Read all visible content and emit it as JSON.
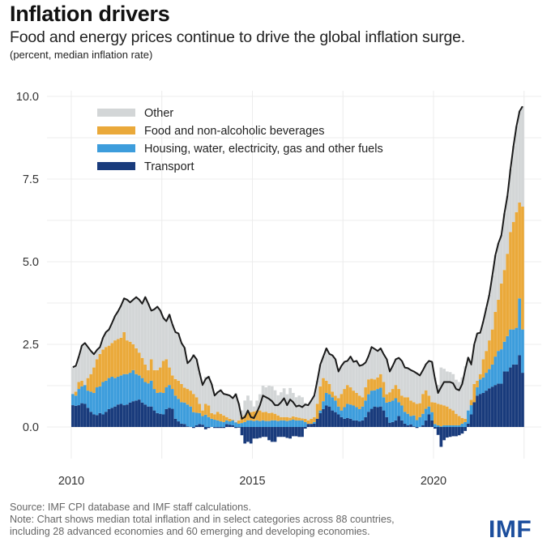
{
  "header": {
    "title": "Inflation drivers",
    "subtitle": "Food and energy prices continue to drive the global inflation surge.",
    "units": "(percent, median inflation rate)"
  },
  "footer": {
    "source": "Source: IMF CPI database and IMF staff calculations.",
    "note_line1": "Note: Chart shows median total inflation and in select categories across 88 countries,",
    "note_line2": "including 28 advanced economies and 60 emerging and developing economies."
  },
  "logo": {
    "text": "IMF",
    "color": "#1c4e9d"
  },
  "chart_data": {
    "type": "bar",
    "subtype": "stacked monthly bars with total line",
    "title": "Inflation drivers",
    "subtitle": "Food and energy prices continue to drive the global inflation surge.",
    "ylabel": "(percent, median inflation rate)",
    "xlabel": "",
    "x_start": "2010-01",
    "x_end": "2022-06",
    "frequency": "monthly",
    "xlim": [
      2010,
      2022.5
    ],
    "ylim": [
      -1.0,
      10.0
    ],
    "yticks": [
      0.0,
      2.5,
      5.0,
      7.5,
      10.0
    ],
    "ytick_labels": [
      "0.0",
      "2.5",
      "5.0",
      "7.5",
      "10.0"
    ],
    "xticks": [
      2010,
      2015,
      2020
    ],
    "xtick_labels": [
      "2010",
      "2015",
      "2020"
    ],
    "grid": true,
    "legend_position": "top-left",
    "legend": [
      {
        "key": "other",
        "label": "Other",
        "color": "#d3d6d7"
      },
      {
        "key": "food",
        "label": "Food and non-alcoholic beverages",
        "color": "#eaa93a"
      },
      {
        "key": "housing",
        "label": "Housing, water, electricity, gas and other fuels",
        "color": "#3d9ddc"
      },
      {
        "key": "transport",
        "label": "Transport",
        "color": "#193b7c"
      }
    ],
    "line": {
      "name": "Total (median headline inflation)",
      "color": "#1a1a1a"
    },
    "note": "Stack order bottom to top: transport, housing, food, other. transport is the transport contribution; housing_top and food_top are cumulative stack levels; other fills up to total (minus any negative transport).",
    "total": [
      1.81,
      1.85,
      2.13,
      2.46,
      2.54,
      2.42,
      2.3,
      2.2,
      2.33,
      2.42,
      2.7,
      2.87,
      2.95,
      3.15,
      3.36,
      3.5,
      3.68,
      3.89,
      3.85,
      3.77,
      3.85,
      3.93,
      3.85,
      3.73,
      3.93,
      3.73,
      3.52,
      3.56,
      3.64,
      3.52,
      3.3,
      3.2,
      3.4,
      3.1,
      2.87,
      2.83,
      2.54,
      2.4,
      1.93,
      2.02,
      2.17,
      2.05,
      1.64,
      1.27,
      1.45,
      1.52,
      1.3,
      0.95,
      1.05,
      1.11,
      1.0,
      0.98,
      0.95,
      0.87,
      0.99,
      0.7,
      0.25,
      0.3,
      0.5,
      0.3,
      0.27,
      0.45,
      0.66,
      0.95,
      0.9,
      0.85,
      0.78,
      0.66,
      0.66,
      0.75,
      0.87,
      0.66,
      0.83,
      0.75,
      0.62,
      0.65,
      0.6,
      0.68,
      0.66,
      0.8,
      0.95,
      1.4,
      1.89,
      2.13,
      2.38,
      2.21,
      2.17,
      2.05,
      1.68,
      1.85,
      1.97,
      2.0,
      2.13,
      1.97,
      2.0,
      1.85,
      1.88,
      1.95,
      2.15,
      2.42,
      2.36,
      2.3,
      2.38,
      2.2,
      2.05,
      1.68,
      1.85,
      2.05,
      2.09,
      2.0,
      1.8,
      1.78,
      1.72,
      1.68,
      1.62,
      1.56,
      1.72,
      1.9,
      2.0,
      1.97,
      1.44,
      1.03,
      1.2,
      1.36,
      1.36,
      1.36,
      1.32,
      1.15,
      1.11,
      1.3,
      1.72,
      2.1,
      1.89,
      2.5,
      2.83,
      2.85,
      3.2,
      3.6,
      4.0,
      4.58,
      5.2,
      5.56,
      5.8,
      6.46,
      7.0,
      7.8,
      8.5,
      9.1,
      9.55,
      9.7
    ],
    "transport": [
      0.66,
      0.64,
      0.66,
      0.72,
      0.7,
      0.58,
      0.46,
      0.38,
      0.36,
      0.42,
      0.38,
      0.46,
      0.54,
      0.58,
      0.62,
      0.68,
      0.7,
      0.66,
      0.68,
      0.74,
      0.78,
      0.8,
      0.83,
      0.74,
      0.68,
      0.62,
      0.62,
      0.5,
      0.42,
      0.4,
      0.38,
      0.54,
      0.58,
      0.55,
      0.25,
      0.17,
      0.1,
      0.09,
      0.02,
      0.0,
      -0.03,
      0.05,
      0.09,
      0.07,
      -0.07,
      -0.03,
      0.0,
      -0.03,
      -0.03,
      -0.03,
      -0.03,
      0.09,
      0.07,
      0.05,
      -0.03,
      -0.02,
      -0.25,
      -0.5,
      -0.45,
      -0.5,
      -0.35,
      -0.35,
      -0.33,
      -0.3,
      -0.3,
      -0.4,
      -0.45,
      -0.45,
      -0.3,
      -0.3,
      -0.3,
      -0.33,
      -0.35,
      -0.28,
      -0.28,
      -0.3,
      -0.3,
      -0.05,
      0.09,
      0.09,
      0.1,
      0.25,
      0.42,
      0.54,
      0.65,
      0.62,
      0.5,
      0.45,
      0.38,
      0.3,
      0.25,
      0.27,
      0.25,
      0.2,
      0.2,
      0.17,
      0.2,
      0.3,
      0.46,
      0.55,
      0.62,
      0.6,
      0.62,
      0.5,
      0.3,
      0.13,
      0.15,
      0.2,
      0.33,
      0.2,
      0.1,
      0.05,
      0.08,
      0.02,
      -0.03,
      0.0,
      0.05,
      0.2,
      0.38,
      0.2,
      -0.05,
      -0.24,
      -0.6,
      -0.4,
      -0.32,
      -0.3,
      -0.28,
      -0.28,
      -0.25,
      -0.2,
      -0.12,
      0.1,
      0.38,
      0.75,
      0.95,
      1.0,
      1.03,
      1.1,
      1.17,
      1.22,
      1.27,
      1.31,
      1.31,
      1.68,
      1.68,
      1.8,
      1.89,
      1.89,
      2.17,
      1.64
    ],
    "housing_top": [
      1.0,
      0.95,
      1.15,
      1.23,
      1.27,
      1.1,
      1.07,
      1.03,
      1.2,
      1.23,
      1.36,
      1.4,
      1.48,
      1.52,
      1.48,
      1.52,
      1.56,
      1.6,
      1.6,
      1.64,
      1.72,
      1.6,
      1.56,
      1.48,
      1.36,
      1.32,
      1.4,
      1.15,
      1.03,
      1.05,
      1.03,
      1.2,
      1.27,
      1.15,
      0.95,
      0.85,
      0.75,
      0.74,
      0.68,
      0.62,
      0.45,
      0.43,
      0.42,
      0.33,
      0.37,
      0.3,
      0.25,
      0.22,
      0.2,
      0.17,
      0.15,
      0.2,
      0.17,
      0.2,
      0.14,
      0.1,
      0.12,
      0.15,
      0.2,
      0.2,
      0.18,
      0.2,
      0.18,
      0.2,
      0.18,
      0.18,
      0.2,
      0.2,
      0.18,
      0.2,
      0.2,
      0.18,
      0.2,
      0.22,
      0.2,
      0.2,
      0.2,
      0.15,
      0.1,
      0.1,
      0.15,
      0.25,
      0.5,
      0.78,
      1.03,
      0.99,
      0.9,
      0.8,
      0.62,
      0.5,
      0.6,
      0.7,
      0.68,
      0.65,
      0.6,
      0.54,
      0.62,
      0.8,
      0.99,
      1.1,
      1.11,
      1.15,
      1.19,
      0.9,
      0.74,
      0.76,
      0.8,
      0.87,
      0.75,
      0.65,
      0.46,
      0.4,
      0.33,
      0.35,
      0.21,
      0.3,
      0.4,
      0.55,
      0.62,
      0.45,
      0.09,
      0.05,
      0.02,
      0.05,
      0.05,
      0.05,
      0.05,
      0.05,
      0.05,
      0.1,
      0.15,
      0.5,
      0.66,
      0.74,
      1.2,
      1.44,
      1.5,
      1.64,
      1.75,
      1.89,
      2.13,
      2.3,
      2.35,
      2.58,
      2.75,
      2.95,
      2.95,
      3.0,
      3.89,
      2.95
    ],
    "food_top": [
      1.0,
      1.07,
      1.36,
      1.4,
      1.27,
      1.48,
      1.6,
      1.8,
      2.05,
      2.21,
      2.34,
      2.42,
      2.46,
      2.54,
      2.62,
      2.66,
      2.7,
      2.87,
      2.62,
      2.58,
      2.5,
      2.38,
      2.25,
      2.09,
      1.89,
      1.72,
      2.05,
      1.72,
      1.72,
      1.8,
      2.0,
      2.05,
      1.8,
      1.56,
      1.45,
      1.4,
      1.3,
      1.19,
      1.15,
      1.1,
      1.0,
      0.9,
      0.7,
      0.5,
      0.7,
      0.65,
      0.42,
      0.38,
      0.46,
      0.4,
      0.35,
      0.3,
      0.25,
      0.22,
      0.15,
      0.2,
      0.3,
      0.35,
      0.42,
      0.45,
      0.47,
      0.5,
      0.5,
      0.45,
      0.46,
      0.42,
      0.43,
      0.4,
      0.35,
      0.3,
      0.3,
      0.3,
      0.28,
      0.32,
      0.3,
      0.28,
      0.26,
      0.25,
      0.2,
      0.25,
      0.3,
      0.7,
      1.23,
      1.48,
      1.4,
      1.3,
      1.07,
      0.95,
      0.87,
      1.0,
      1.15,
      1.27,
      1.2,
      1.1,
      1.03,
      0.95,
      0.9,
      1.2,
      1.44,
      1.46,
      1.44,
      1.5,
      1.6,
      1.36,
      0.99,
      1.05,
      1.15,
      1.27,
      1.15,
      0.95,
      0.9,
      0.9,
      0.8,
      0.75,
      0.7,
      0.72,
      1.0,
      1.11,
      0.95,
      0.75,
      0.74,
      0.7,
      0.68,
      0.65,
      0.62,
      0.55,
      0.5,
      0.4,
      0.33,
      0.27,
      0.25,
      0.5,
      0.82,
      1.3,
      1.4,
      1.6,
      2.05,
      2.3,
      2.62,
      2.95,
      3.48,
      3.85,
      4.34,
      4.75,
      5.24,
      5.9,
      6.2,
      6.5,
      6.79,
      6.67
    ]
  }
}
